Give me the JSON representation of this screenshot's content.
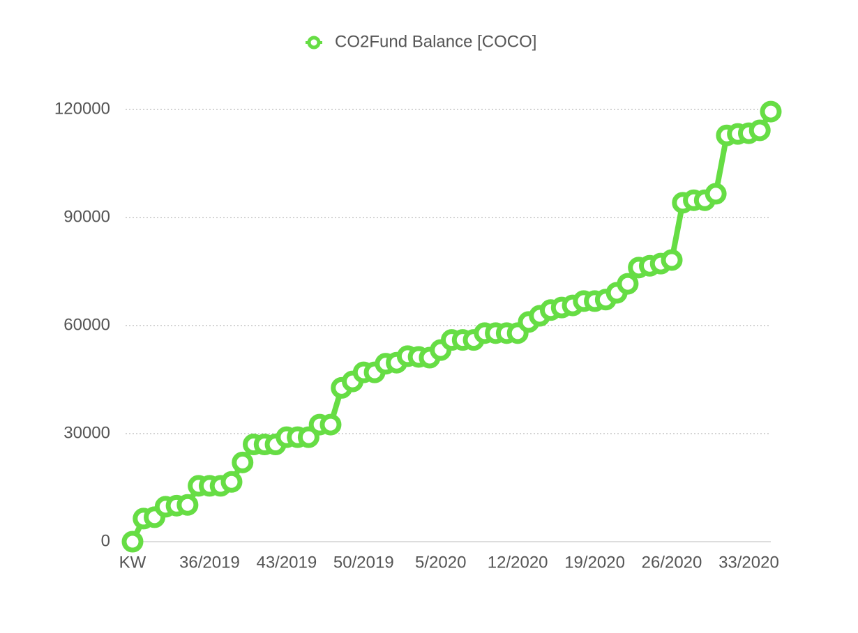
{
  "chart_data": {
    "type": "line",
    "categories": [
      "KW",
      null,
      null,
      null,
      null,
      null,
      null,
      "36/2019",
      null,
      null,
      null,
      null,
      null,
      null,
      "43/2019",
      null,
      null,
      null,
      null,
      null,
      null,
      "50/2019",
      null,
      null,
      null,
      null,
      null,
      null,
      "5/2020",
      null,
      null,
      null,
      null,
      null,
      null,
      "12/2020",
      null,
      null,
      null,
      null,
      null,
      null,
      "19/2020",
      null,
      null,
      null,
      null,
      null,
      null,
      "26/2020",
      null,
      null,
      null,
      null,
      null,
      null,
      "33/2020",
      null,
      null
    ],
    "series": [
      {
        "name": "CO2Fund Balance [COCO]",
        "color": "#66dd44",
        "values": [
          0,
          6400,
          6800,
          9700,
          10000,
          10200,
          15500,
          15500,
          15500,
          16600,
          22000,
          27000,
          27000,
          27000,
          29000,
          29000,
          29000,
          32500,
          32500,
          42700,
          44500,
          47000,
          47000,
          49400,
          49700,
          51500,
          51300,
          51100,
          53200,
          56000,
          56000,
          56000,
          57900,
          57900,
          57900,
          57900,
          61000,
          62700,
          64300,
          65000,
          65600,
          66800,
          66800,
          67200,
          69100,
          71600,
          76100,
          76600,
          77200,
          78200,
          94100,
          94800,
          94800,
          96600,
          112800,
          113200,
          113400,
          114200,
          119400
        ]
      }
    ],
    "ylim": [
      0,
      120000
    ],
    "yticks": [
      0,
      30000,
      60000,
      90000,
      120000
    ],
    "grid": true,
    "legend": "top"
  }
}
